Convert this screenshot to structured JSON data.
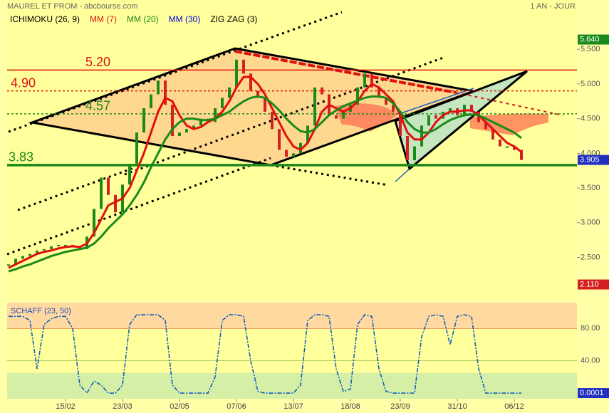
{
  "chart_data": [
    {
      "type": "candle-line",
      "title": "MAUREL ET PROM - abcbourse.com",
      "subtitle": "1 AN - JOUR",
      "categories": [
        null,
        null,
        null,
        null,
        null,
        null,
        null,
        null,
        "15/02",
        null,
        null,
        null,
        null,
        null,
        null,
        null,
        "23/03",
        null,
        null,
        null,
        null,
        null,
        null,
        null,
        "02/05",
        null,
        null,
        null,
        null,
        null,
        null,
        null,
        "07/06",
        null,
        null,
        null,
        null,
        null,
        null,
        null,
        "13/07",
        null,
        null,
        null,
        null,
        null,
        null,
        null,
        "18/08",
        null,
        null,
        null,
        null,
        null,
        null,
        "23/09",
        null,
        null,
        null,
        null,
        null,
        null,
        null,
        "31/10",
        null,
        null,
        null,
        null,
        null,
        null,
        null,
        "06/12",
        null
      ],
      "values": [
        2.4,
        2.48,
        2.52,
        2.55,
        2.6,
        2.62,
        2.66,
        2.68,
        2.68,
        2.66,
        2.62,
        2.8,
        3.2,
        3.65,
        3.4,
        3.15,
        3.55,
        3.85,
        4.3,
        4.65,
        4.85,
        5.05,
        4.7,
        4.25,
        4.3,
        4.35,
        4.4,
        4.5,
        4.45,
        4.65,
        4.8,
        4.95,
        5.35,
        5.15,
        4.9,
        4.8,
        4.6,
        4.35,
        4.05,
        3.95,
        4.0,
        4.15,
        4.4,
        4.95,
        4.85,
        4.55,
        4.5,
        4.6,
        4.7,
        4.95,
        5.15,
        4.95,
        4.8,
        4.7,
        4.6,
        4.25,
        3.9,
        4.1,
        4.4,
        4.55,
        4.5,
        4.6,
        4.65,
        4.55,
        4.7,
        4.6,
        4.45,
        4.35,
        4.2,
        4.1,
        4.1,
        4.05,
        3.905
      ],
      "up_color": "#1a8a1a",
      "down_color": "#d42020",
      "series": [
        {
          "name": "ICHIMOKU (26, 9)",
          "color": "#000000"
        },
        {
          "name": "MM (7)",
          "color": "#e01010",
          "values": [
            2.35,
            2.4,
            2.45,
            2.5,
            2.55,
            2.58,
            2.6,
            2.63,
            2.65,
            2.66,
            2.65,
            2.7,
            2.85,
            3.05,
            3.25,
            3.3,
            3.35,
            3.5,
            3.75,
            4.0,
            4.3,
            4.6,
            4.8,
            4.75,
            4.55,
            4.4,
            4.35,
            4.38,
            4.45,
            4.5,
            4.6,
            4.75,
            4.95,
            5.1,
            5.1,
            5.0,
            4.85,
            4.65,
            4.45,
            4.25,
            4.1,
            4.05,
            4.15,
            4.35,
            4.6,
            4.7,
            4.65,
            4.6,
            4.65,
            4.75,
            4.9,
            5.0,
            4.95,
            4.85,
            4.75,
            4.55,
            4.3,
            4.2,
            4.2,
            4.3,
            4.45,
            4.55,
            4.6,
            4.6,
            4.62,
            4.62,
            4.55,
            4.45,
            4.35,
            4.25,
            4.15,
            4.1,
            4.02
          ]
        },
        {
          "name": "MM (20)",
          "color": "#1a8a1a",
          "values": [
            2.3,
            2.33,
            2.37,
            2.4,
            2.44,
            2.48,
            2.52,
            2.55,
            2.58,
            2.6,
            2.62,
            2.64,
            2.7,
            2.8,
            2.92,
            3.02,
            3.12,
            3.25,
            3.4,
            3.58,
            3.8,
            4.0,
            4.2,
            4.35,
            4.45,
            4.5,
            4.5,
            4.48,
            4.48,
            4.5,
            4.55,
            4.6,
            4.68,
            4.75,
            4.8,
            4.82,
            4.8,
            4.72,
            4.62,
            4.5,
            4.4,
            4.32,
            4.3,
            4.35,
            4.45,
            4.55,
            4.62,
            4.68,
            4.72,
            4.76,
            4.8,
            4.82,
            4.82,
            4.8,
            4.72,
            4.6,
            4.45,
            4.35,
            4.3,
            4.3,
            4.35,
            4.42,
            4.48,
            4.52,
            4.55,
            4.56,
            4.55,
            4.5,
            4.45,
            4.4,
            4.35,
            4.3,
            4.22
          ]
        },
        {
          "name": "MM (30)",
          "color": "#0000dd"
        },
        {
          "name": "ZIG ZAG (3)",
          "color": "#000000"
        }
      ],
      "ylim": [
        1.9,
        6.21
      ],
      "yticks": [
        {
          "value": 5.5,
          "label": "5.500"
        },
        {
          "value": 5,
          "label": "5.000"
        },
        {
          "value": 4.5,
          "label": "4.500"
        },
        {
          "value": 4,
          "label": "4.000"
        },
        {
          "value": 3.5,
          "label": "3.500"
        },
        {
          "value": 3,
          "label": "3.000"
        },
        {
          "value": 2.5,
          "label": "2.500"
        }
      ],
      "levels": [
        {
          "value": 5.2,
          "label": "5.20",
          "color": "#e01010",
          "style": "solid"
        },
        {
          "value": 4.9,
          "label": "4.90",
          "color": "#e01010",
          "style": "dotted"
        },
        {
          "value": 4.57,
          "label": "4.57",
          "color": "#1a8a1a",
          "style": "dotted"
        },
        {
          "value": 3.83,
          "label": "3.83",
          "color": "#1a8a1a",
          "style": "thick"
        }
      ],
      "markers": [
        {
          "value": 5.64,
          "label": "5.640",
          "color": "#1a8a1a"
        },
        {
          "value": 3.905,
          "label": "3.905",
          "color": "#2030c0"
        },
        {
          "value": 2.11,
          "label": "2.110",
          "color": "#d42020"
        }
      ]
    },
    {
      "type": "line",
      "title": "SCHAFF (23, 50)",
      "series": [
        {
          "name": "SCHAFF (23, 50)",
          "color": "#1060c0",
          "values": [
            95,
            95,
            95,
            90,
            30,
            85,
            92,
            95,
            95,
            80,
            10,
            0,
            15,
            10,
            0,
            0,
            10,
            85,
            97,
            97,
            97,
            97,
            90,
            10,
            0,
            0,
            0,
            0,
            0,
            20,
            90,
            97,
            97,
            95,
            40,
            2,
            0,
            0,
            0,
            0,
            0,
            10,
            90,
            97,
            97,
            95,
            30,
            2,
            5,
            85,
            97,
            95,
            30,
            2,
            0,
            0,
            0,
            0,
            70,
            95,
            97,
            95,
            60,
            95,
            97,
            95,
            30,
            0,
            0,
            0,
            0,
            0,
            0.0001
          ]
        }
      ],
      "ylim": [
        -7,
        112
      ],
      "yticks": [
        {
          "value": 80,
          "label": "80.00"
        },
        {
          "value": 40,
          "label": "40.00"
        }
      ],
      "bands": [
        {
          "from": 80,
          "to": 112,
          "color": "#ffd9a0"
        },
        {
          "from": -7,
          "to": 25,
          "color": "#d6efa6"
        }
      ],
      "markers": [
        {
          "value": 0.0001,
          "label": "0.0001",
          "color": "#2030c0"
        }
      ]
    }
  ]
}
